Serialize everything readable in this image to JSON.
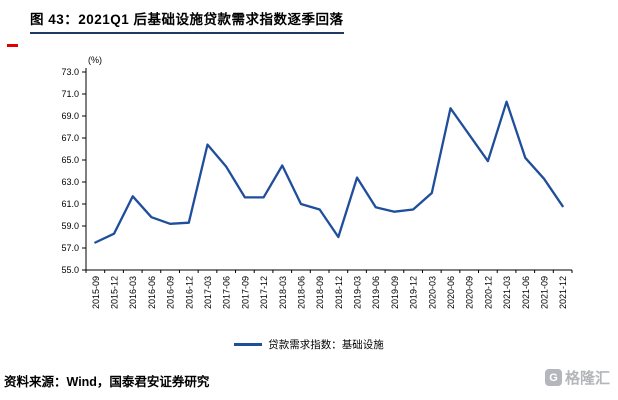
{
  "title": "图 43：2021Q1 后基础设施贷款需求指数逐季回落",
  "footer": {
    "source": "资料来源：Wind，国泰君安证券研究"
  },
  "watermark": {
    "icon_letter": "G",
    "text": "格隆汇"
  },
  "chart_data": {
    "type": "line",
    "title": "图 43：2021Q1 后基础设施贷款需求指数逐季回落",
    "unit_label": "(%)",
    "xlabel": "",
    "ylabel": "(%)",
    "ylim": [
      55.0,
      73.0
    ],
    "ytick_step": 2.0,
    "grid": false,
    "legend_position": "bottom",
    "line_color": "#1F4E9B",
    "categories": [
      "2015-09",
      "2015-12",
      "2016-03",
      "2016-06",
      "2016-09",
      "2016-12",
      "2017-03",
      "2017-06",
      "2017-09",
      "2017-12",
      "2018-03",
      "2018-06",
      "2018-09",
      "2018-12",
      "2019-03",
      "2019-06",
      "2019-09",
      "2019-12",
      "2020-03",
      "2020-06",
      "2020-09",
      "2020-12",
      "2021-03",
      "2021-06",
      "2021-09",
      "2021-12"
    ],
    "series": [
      {
        "name": "贷款需求指数：基础设施",
        "values": [
          57.5,
          58.3,
          61.7,
          59.8,
          59.2,
          59.3,
          66.4,
          64.4,
          61.6,
          61.6,
          64.5,
          61.0,
          60.5,
          58.0,
          63.4,
          60.7,
          60.3,
          60.5,
          62.0,
          69.7,
          67.3,
          64.9,
          70.3,
          65.2,
          63.3,
          60.8
        ]
      }
    ]
  }
}
